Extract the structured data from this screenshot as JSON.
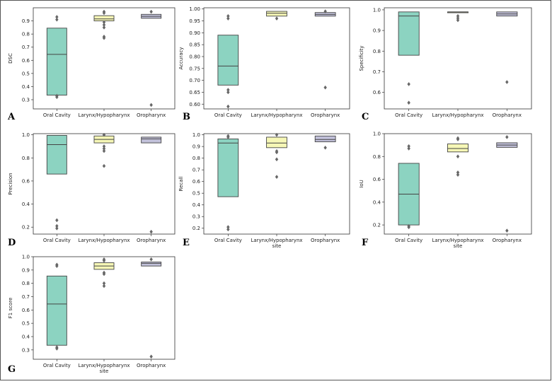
{
  "colors": {
    "oral": "#8cd3c1",
    "larynx": "#f6f7b6",
    "oro": "#c1c0d9",
    "line": "#444444",
    "flier": "#666666"
  },
  "chart_data": [
    {
      "type": "box",
      "letter": "A",
      "ylabel": "DSC",
      "xlabel": "",
      "categories": [
        "Oral Cavity",
        "Larynx/Hypopharynx",
        "Oropharynx"
      ],
      "ylim": [
        0.23,
        1.0
      ],
      "yticks": [
        0.3,
        0.4,
        0.5,
        0.6,
        0.7,
        0.8,
        0.9
      ],
      "tick_decimals": 1,
      "boxes": [
        {
          "q1": 0.335,
          "median": 0.645,
          "q3": 0.845,
          "outliers": [
            0.93,
            0.91,
            0.33,
            0.32
          ]
        },
        {
          "q1": 0.9,
          "median": 0.915,
          "q3": 0.94,
          "outliers": [
            0.97,
            0.96,
            0.89,
            0.87,
            0.85,
            0.78,
            0.77
          ]
        },
        {
          "q1": 0.92,
          "median": 0.935,
          "q3": 0.95,
          "outliers": [
            0.97,
            0.26
          ]
        }
      ]
    },
    {
      "type": "box",
      "letter": "B",
      "ylabel": "Accuracy",
      "xlabel": "",
      "categories": [
        "Oral Cavity",
        "Larynx/Hypopharynx",
        "Oropharynx"
      ],
      "ylim": [
        0.58,
        1.005
      ],
      "yticks": [
        0.6,
        0.65,
        0.7,
        0.75,
        0.8,
        0.85,
        0.9,
        0.95,
        1.0
      ],
      "tick_decimals": 2,
      "boxes": [
        {
          "q1": 0.68,
          "median": 0.76,
          "q3": 0.89,
          "outliers": [
            0.97,
            0.96,
            0.66,
            0.65,
            0.59
          ]
        },
        {
          "q1": 0.97,
          "median": 0.982,
          "q3": 0.99,
          "outliers": [
            0.96
          ]
        },
        {
          "q1": 0.97,
          "median": 0.977,
          "q3": 0.985,
          "outliers": [
            0.99,
            0.67
          ]
        }
      ]
    },
    {
      "type": "box",
      "letter": "C",
      "ylabel": "Specificity",
      "xlabel": "",
      "categories": [
        "Oral Cavity",
        "Larynx/Hypopharynx",
        "Oropharynx"
      ],
      "ylim": [
        0.52,
        1.01
      ],
      "yticks": [
        0.6,
        0.7,
        0.8,
        0.9,
        1.0
      ],
      "tick_decimals": 1,
      "boxes": [
        {
          "q1": 0.78,
          "median": 0.97,
          "q3": 0.99,
          "outliers": [
            0.64,
            0.55
          ]
        },
        {
          "q1": 0.99,
          "median": 0.99,
          "q3": 0.99,
          "outliers": [
            0.97,
            0.96,
            0.95
          ]
        },
        {
          "q1": 0.97,
          "median": 0.98,
          "q3": 0.99,
          "outliers": [
            0.65
          ]
        }
      ]
    },
    {
      "type": "box",
      "letter": "D",
      "ylabel": "Precision",
      "xlabel": "",
      "categories": [
        "Oral Cavity",
        "Larynx/Hypopharynx",
        "Oropharynx"
      ],
      "ylim": [
        0.14,
        1.01
      ],
      "yticks": [
        0.2,
        0.4,
        0.6,
        0.8,
        1.0
      ],
      "tick_decimals": 1,
      "boxes": [
        {
          "q1": 0.66,
          "median": 0.915,
          "q3": 0.995,
          "outliers": [
            0.26,
            0.21,
            0.19
          ]
        },
        {
          "q1": 0.93,
          "median": 0.96,
          "q3": 0.99,
          "outliers": [
            1.0,
            0.9,
            0.88,
            0.86,
            0.73
          ]
        },
        {
          "q1": 0.93,
          "median": 0.965,
          "q3": 0.98,
          "outliers": [
            0.16
          ]
        }
      ]
    },
    {
      "type": "box",
      "letter": "E",
      "ylabel": "Recall",
      "xlabel": "site",
      "categories": [
        "Oral Cavity",
        "Larynx/Hypopharynx",
        "Oropharynx"
      ],
      "ylim": [
        0.15,
        1.01
      ],
      "yticks": [
        0.2,
        0.3,
        0.4,
        0.5,
        0.6,
        0.7,
        0.8,
        0.9,
        1.0
      ],
      "tick_decimals": 1,
      "boxes": [
        {
          "q1": 0.47,
          "median": 0.93,
          "q3": 0.965,
          "outliers": [
            0.99,
            0.98,
            0.21,
            0.19
          ]
        },
        {
          "q1": 0.89,
          "median": 0.93,
          "q3": 0.98,
          "outliers": [
            1.0,
            0.86,
            0.85,
            0.79,
            0.64
          ]
        },
        {
          "q1": 0.94,
          "median": 0.96,
          "q3": 0.99,
          "outliers": [
            0.89
          ]
        }
      ]
    },
    {
      "type": "box",
      "letter": "F",
      "ylabel": "IoU",
      "xlabel": "site",
      "categories": [
        "Oral Cavity",
        "Larynx/Hypopharynx",
        "Oropharynx"
      ],
      "ylim": [
        0.12,
        1.0
      ],
      "yticks": [
        0.2,
        0.4,
        0.6,
        0.8,
        1.0
      ],
      "tick_decimals": 1,
      "boxes": [
        {
          "q1": 0.2,
          "median": 0.47,
          "q3": 0.74,
          "outliers": [
            0.89,
            0.87,
            0.19,
            0.18
          ]
        },
        {
          "q1": 0.84,
          "median": 0.87,
          "q3": 0.91,
          "outliers": [
            0.96,
            0.95,
            0.8,
            0.66,
            0.64
          ]
        },
        {
          "q1": 0.88,
          "median": 0.9,
          "q3": 0.92,
          "outliers": [
            0.97,
            0.15
          ]
        }
      ]
    },
    {
      "type": "box",
      "letter": "G",
      "ylabel": "F1 score",
      "xlabel": "site",
      "categories": [
        "Oral Cavity",
        "Larynx/Hypopharynx",
        "Oropharynx"
      ],
      "ylim": [
        0.23,
        1.0
      ],
      "yticks": [
        0.3,
        0.4,
        0.5,
        0.6,
        0.7,
        0.8,
        0.9,
        1.0
      ],
      "tick_decimals": 1,
      "boxes": [
        {
          "q1": 0.335,
          "median": 0.645,
          "q3": 0.855,
          "outliers": [
            0.94,
            0.93,
            0.32,
            0.31
          ]
        },
        {
          "q1": 0.905,
          "median": 0.93,
          "q3": 0.955,
          "outliers": [
            0.98,
            0.97,
            0.88,
            0.87,
            0.8,
            0.78
          ]
        },
        {
          "q1": 0.93,
          "median": 0.95,
          "q3": 0.96,
          "outliers": [
            0.98,
            0.25
          ]
        }
      ]
    }
  ]
}
